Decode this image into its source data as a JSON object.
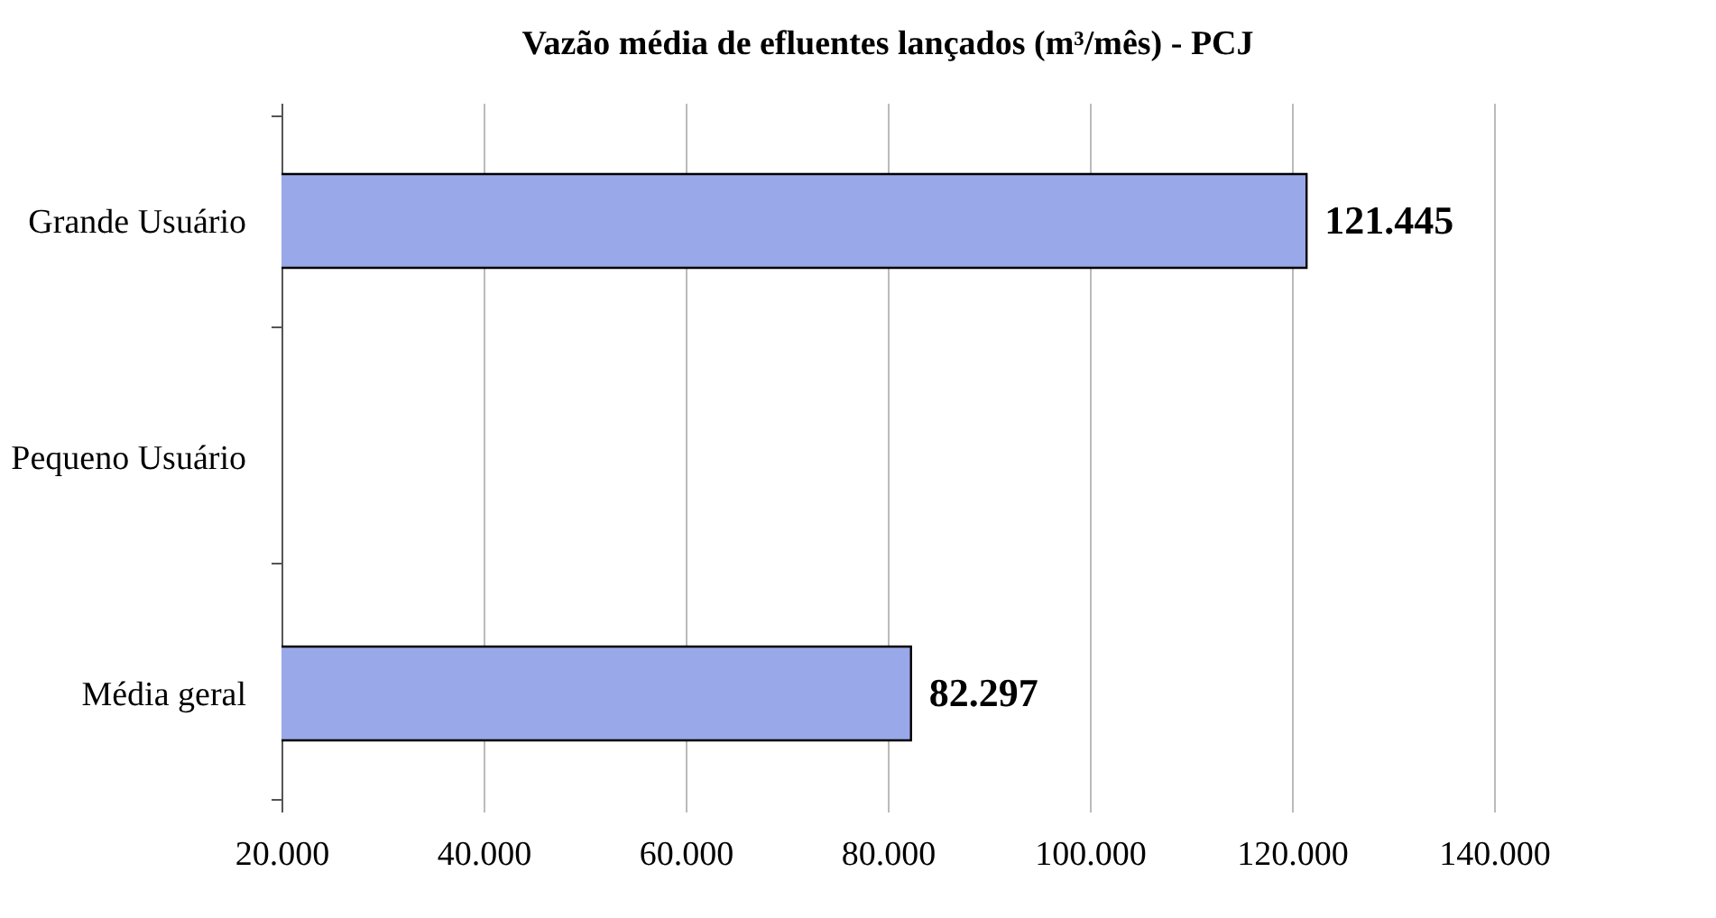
{
  "chart_data": {
    "type": "bar",
    "orientation": "horizontal",
    "title": "Vazão média de efluentes lançados (m³/mês) - PCJ",
    "categories": [
      "Grande Usuário",
      "Pequeno Usuário",
      "Média geral"
    ],
    "values": [
      121445,
      null,
      82297
    ],
    "value_labels": [
      "121.445",
      null,
      "82.297"
    ],
    "color": "#99a8e8",
    "xlim": [
      20000,
      140000
    ],
    "xticks": [
      {
        "value": 20000,
        "label": "20.000"
      },
      {
        "value": 40000,
        "label": "40.000"
      },
      {
        "value": 60000,
        "label": "60.000"
      },
      {
        "value": 80000,
        "label": "80.000"
      },
      {
        "value": 100000,
        "label": "100.000"
      },
      {
        "value": 120000,
        "label": "120.000"
      },
      {
        "value": 140000,
        "label": "140.000"
      }
    ],
    "grid": "x"
  }
}
